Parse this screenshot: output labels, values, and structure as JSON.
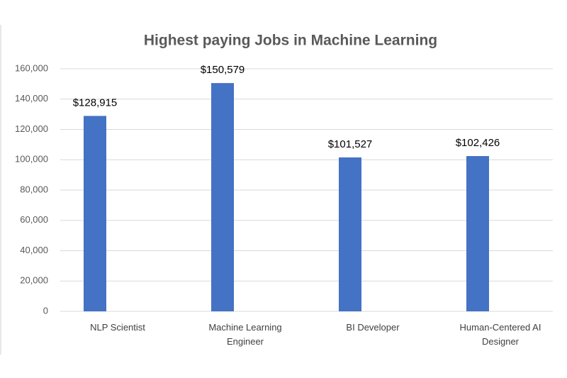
{
  "chart_data": {
    "type": "bar",
    "title": "Highest paying Jobs in Machine Learning",
    "categories": [
      "NLP Scientist",
      "Machine Learning Engineer",
      "BI Developer",
      "Human-Centered AI Designer"
    ],
    "values": [
      128915,
      150579,
      101527,
      102426
    ],
    "value_labels": [
      "$128,915",
      "$150,579",
      "$101,527",
      "$102,426"
    ],
    "color": "#4472c4",
    "ylim": [
      0,
      160000
    ],
    "yticks": [
      0,
      {
        "value": 20000,
        "label": "20,000"
      },
      {
        "value": 40000,
        "label": "40,000"
      },
      {
        "value": 60000,
        "label": "60,000"
      },
      {
        "value": 80000,
        "label": "80,000"
      },
      {
        "value": 100000,
        "label": "100,000"
      },
      {
        "value": 120000,
        "label": "120,000"
      },
      {
        "value": 140000,
        "label": "140,000"
      },
      {
        "value": 160000,
        "label": "160,000"
      }
    ],
    "grid": true
  }
}
